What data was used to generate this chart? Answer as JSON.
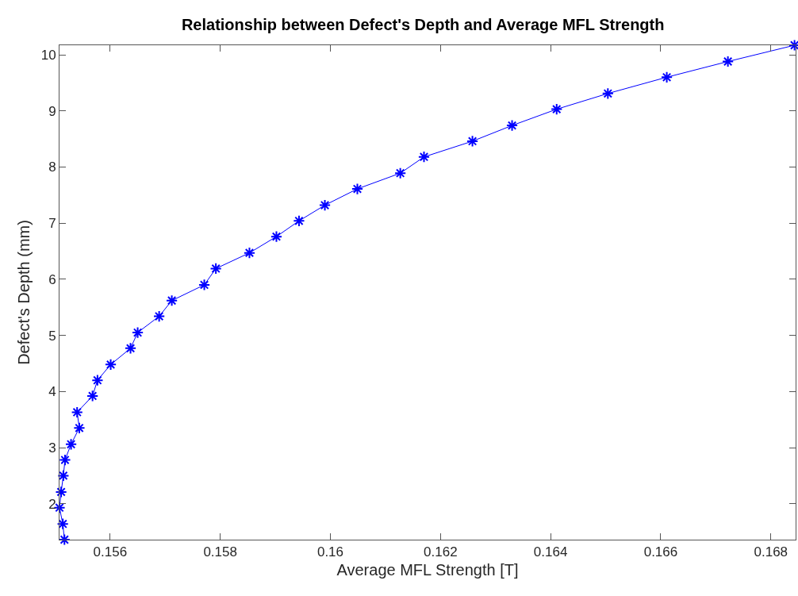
{
  "chart_data": {
    "type": "line",
    "title": "Relationship between Defect's Depth and Average MFL Strength",
    "xlabel": "Average MFL Strength [T]",
    "ylabel": "Defect's Depth (mm)",
    "x": [
      0.15517,
      0.15514,
      0.15508,
      0.15511,
      0.15515,
      0.15518,
      0.15529,
      0.15544,
      0.1554,
      0.15568,
      0.15577,
      0.15601,
      0.15637,
      0.1565,
      0.15689,
      0.15712,
      0.15771,
      0.15792,
      0.15853,
      0.15902,
      0.15943,
      0.1599,
      0.16049,
      0.16127,
      0.1617,
      0.16258,
      0.1633,
      0.16411,
      0.16504,
      0.16611,
      0.16722,
      0.16843
    ],
    "series": [
      {
        "color": "#0000ff",
        "values": [
          1.36,
          1.64,
          1.93,
          2.21,
          2.5,
          2.78,
          3.06,
          3.35,
          3.63,
          3.92,
          4.2,
          4.48,
          4.77,
          5.05,
          5.34,
          5.62,
          5.9,
          6.19,
          6.47,
          6.76,
          7.04,
          7.32,
          7.61,
          7.89,
          8.18,
          8.46,
          8.74,
          9.03,
          9.31,
          9.6,
          9.88,
          10.17
        ]
      }
    ],
    "xlim": [
      0.15508,
      0.16845
    ],
    "ylim": [
      1.36,
      10.17
    ],
    "xticks": [
      0.156,
      0.158,
      0.16,
      0.162,
      0.164,
      0.166,
      0.168
    ],
    "yticks": [
      2,
      3,
      4,
      5,
      6,
      7,
      8,
      9,
      10
    ],
    "marker": "cross",
    "line_style": "solid",
    "legend": false
  }
}
